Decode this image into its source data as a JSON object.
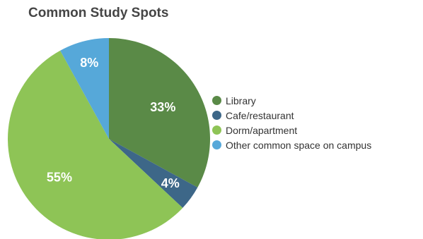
{
  "chart_data": {
    "type": "pie",
    "title": "Common Study Spots",
    "slices": [
      {
        "label": "Library",
        "value": 33,
        "display": "33%",
        "color": "#5a8a47"
      },
      {
        "label": "Cafe/restaurant",
        "value": 4,
        "display": "4%",
        "color": "#3d6788"
      },
      {
        "label": "Dorm/apartment",
        "value": 55,
        "display": "55%",
        "color": "#8ec456"
      },
      {
        "label": "Other common space on campus",
        "value": 8,
        "display": "8%",
        "color": "#56a8d9"
      }
    ],
    "legend_position": "right"
  }
}
